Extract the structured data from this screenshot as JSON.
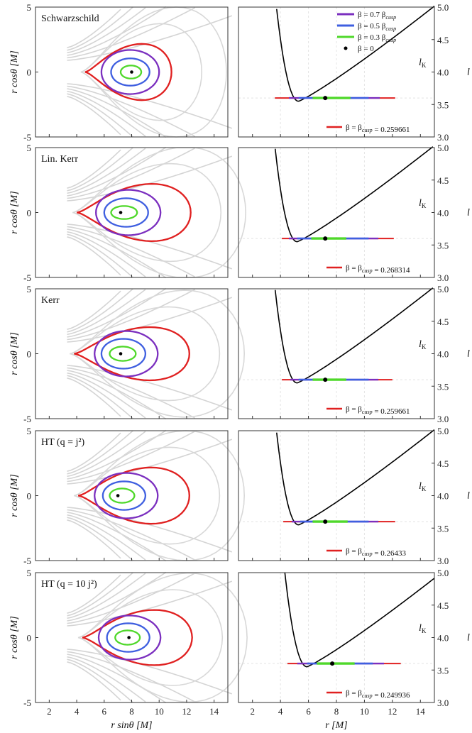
{
  "chart_data": [
    {
      "type": "contour",
      "panel": "left",
      "model_label": "Schwarzschild",
      "xlim": [
        1,
        15
      ],
      "ylim": [
        -5,
        5
      ],
      "xticks": [
        "2",
        "4",
        "6",
        "8",
        "10",
        "12",
        "14"
      ],
      "yticks": [
        "5",
        "0",
        "-5"
      ],
      "ylabel": "r cosθ [M]",
      "center": 8.0,
      "cusp_x": 4.6,
      "beta0": "β = 0",
      "contours": [
        {
          "name": "β = β_cusp",
          "color": "#e02020",
          "x_in": 4.6,
          "x_out": 10.9,
          "y_max": 2.75
        },
        {
          "name": "β = 0.7 β_cusp",
          "color": "#7b2fbf",
          "x_in": 5.8,
          "x_out": 10.0,
          "y_max": 1.7
        },
        {
          "name": "β = 0.5 β_cusp",
          "color": "#3f5fe0",
          "x_in": 6.5,
          "x_out": 9.3,
          "y_max": 1.05
        },
        {
          "name": "β = 0.3 β_cusp",
          "color": "#4fd82a",
          "x_in": 7.2,
          "x_out": 8.7,
          "y_max": 0.5
        }
      ]
    },
    {
      "type": "line",
      "panel": "right",
      "xlim": [
        1,
        15
      ],
      "ylim": [
        3.0,
        5.0
      ],
      "xticks": [
        "2",
        "4",
        "6",
        "8",
        "10",
        "12",
        "14"
      ],
      "yticks": [
        "5.0",
        "4.5",
        "4.0",
        "3.5",
        "3.0"
      ],
      "ylabel": "l",
      "curve_label": "lK",
      "curve_min": {
        "r": 5.3,
        "l": 3.55
      },
      "l_level": 3.6,
      "r_center": 7.2,
      "bands": {
        "cusp": [
          3.6,
          12.2
        ],
        "b07": [
          4.6,
          11.1
        ],
        "b05": [
          5.3,
          10.3
        ],
        "b03": [
          6.3,
          9.0
        ]
      },
      "legend": [
        {
          "label": "β = 0.7 βcusp",
          "color": "#7b2fbf"
        },
        {
          "label": "β = 0.5 βcusp",
          "color": "#3f5fe0"
        },
        {
          "label": "β = 0.3 βcusp",
          "color": "#4fd82a"
        },
        {
          "label": "β = 0",
          "color": "#000000"
        }
      ],
      "cusp_label": "β = βcusp = 0.259661"
    },
    {
      "type": "contour",
      "panel": "left",
      "model_label": "Lin. Kerr",
      "xlim": [
        1,
        15
      ],
      "ylim": [
        -5,
        5
      ],
      "xticks": [
        "2",
        "4",
        "6",
        "8",
        "10",
        "12",
        "14"
      ],
      "yticks": [
        "5",
        "0",
        "-5"
      ],
      "ylabel": "r cosθ [M]",
      "center": 7.2,
      "cusp_x": 4.0,
      "beta0": "β = 0",
      "contours": [
        {
          "name": "β = β_cusp",
          "color": "#e02020",
          "x_in": 4.0,
          "x_out": 12.3,
          "y_max": 2.8
        },
        {
          "name": "β = 0.7 β_cusp",
          "color": "#7b2fbf",
          "x_in": 5.4,
          "x_out": 10.1,
          "y_max": 1.75
        },
        {
          "name": "β = 0.5 β_cusp",
          "color": "#3f5fe0",
          "x_in": 6.0,
          "x_out": 9.2,
          "y_max": 1.1
        },
        {
          "name": "β = 0.3 β_cusp",
          "color": "#4fd82a",
          "x_in": 6.5,
          "x_out": 8.4,
          "y_max": 0.5
        }
      ]
    },
    {
      "type": "line",
      "panel": "right",
      "xlim": [
        1,
        15
      ],
      "ylim": [
        3.0,
        5.0
      ],
      "xticks": [
        "2",
        "4",
        "6",
        "8",
        "10",
        "12",
        "14"
      ],
      "yticks": [
        "5.0",
        "4.5",
        "4.0",
        "3.5",
        "3.0"
      ],
      "ylabel": "l",
      "curve_label": "lK",
      "curve_min": {
        "r": 5.2,
        "l": 3.55
      },
      "l_level": 3.6,
      "r_center": 7.2,
      "bands": {
        "cusp": [
          4.1,
          12.1
        ],
        "b07": [
          4.6,
          11.0
        ],
        "b05": [
          5.2,
          10.3
        ],
        "b03": [
          6.2,
          8.7
        ]
      },
      "cusp_label": "β = βcusp = 0.268314"
    },
    {
      "type": "contour",
      "panel": "left",
      "model_label": "Kerr",
      "xlim": [
        1,
        15
      ],
      "ylim": [
        -5,
        5
      ],
      "xticks": [
        "2",
        "4",
        "6",
        "8",
        "10",
        "12",
        "14"
      ],
      "yticks": [
        "5",
        "0",
        "-5"
      ],
      "ylabel": "r cosθ [M]",
      "center": 7.2,
      "cusp_x": 3.8,
      "beta0": "β = 0",
      "contours": [
        {
          "name": "β = β_cusp",
          "color": "#e02020",
          "x_in": 3.8,
          "x_out": 12.2,
          "y_max": 2.6
        },
        {
          "name": "β = 0.7 β_cusp",
          "color": "#7b2fbf",
          "x_in": 5.3,
          "x_out": 9.9,
          "y_max": 1.75
        },
        {
          "name": "β = 0.5 β_cusp",
          "color": "#3f5fe0",
          "x_in": 5.8,
          "x_out": 9.0,
          "y_max": 1.15
        },
        {
          "name": "β = 0.3 β_cusp",
          "color": "#4fd82a",
          "x_in": 6.4,
          "x_out": 8.3,
          "y_max": 0.55
        }
      ]
    },
    {
      "type": "line",
      "panel": "right",
      "xlim": [
        1,
        15
      ],
      "ylim": [
        3.0,
        5.0
      ],
      "xticks": [
        "2",
        "4",
        "6",
        "8",
        "10",
        "12",
        "14"
      ],
      "yticks": [
        "5.0",
        "4.5",
        "4.0",
        "3.5",
        "3.0"
      ],
      "ylabel": "l",
      "curve_label": "lK",
      "curve_min": {
        "r": 5.2,
        "l": 3.55
      },
      "l_level": 3.6,
      "r_center": 7.2,
      "bands": {
        "cusp": [
          4.1,
          12.0
        ],
        "b07": [
          4.7,
          11.0
        ],
        "b05": [
          5.3,
          10.3
        ],
        "b03": [
          6.3,
          8.7
        ]
      },
      "cusp_label": "β = βcusp = 0.259661"
    },
    {
      "type": "contour",
      "panel": "left",
      "model_label": "HT (q = j²)",
      "xlim": [
        1,
        15
      ],
      "ylim": [
        -5,
        5
      ],
      "xticks": [
        "2",
        "4",
        "6",
        "8",
        "10",
        "12",
        "14"
      ],
      "yticks": [
        "5",
        "0",
        "-5"
      ],
      "ylabel": "r cosθ [M]",
      "center": 7.0,
      "cusp_x": 4.1,
      "beta0": "β = 0",
      "contours": [
        {
          "name": "β = β_cusp",
          "color": "#e02020",
          "x_in": 4.1,
          "x_out": 12.2,
          "y_max": 2.75
        },
        {
          "name": "β = 0.7 β_cusp",
          "color": "#7b2fbf",
          "x_in": 5.3,
          "x_out": 9.9,
          "y_max": 1.75
        },
        {
          "name": "β = 0.5 β_cusp",
          "color": "#3f5fe0",
          "x_in": 5.9,
          "x_out": 9.0,
          "y_max": 1.1
        },
        {
          "name": "β = 0.3 β_cusp",
          "color": "#4fd82a",
          "x_in": 6.4,
          "x_out": 8.2,
          "y_max": 0.55
        }
      ]
    },
    {
      "type": "line",
      "panel": "right",
      "xlim": [
        1,
        15
      ],
      "ylim": [
        3.0,
        5.0
      ],
      "xticks": [
        "2",
        "4",
        "6",
        "8",
        "10",
        "12",
        "14"
      ],
      "yticks": [
        "5.0",
        "4.5",
        "4.0",
        "3.5",
        "3.0"
      ],
      "ylabel": "l",
      "curve_label": "lK",
      "curve_min": {
        "r": 5.3,
        "l": 3.55
      },
      "l_level": 3.6,
      "r_center": 7.2,
      "bands": {
        "cusp": [
          4.2,
          12.2
        ],
        "b07": [
          4.8,
          11.0
        ],
        "b05": [
          5.4,
          10.3
        ],
        "b03": [
          6.3,
          8.8
        ]
      },
      "cusp_label": "β = βcusp = 0.26433"
    },
    {
      "type": "contour",
      "panel": "left",
      "model_label": "HT (q = 10 j²)",
      "xlim": [
        1,
        15
      ],
      "ylim": [
        -5,
        5
      ],
      "xticks": [
        "2",
        "4",
        "6",
        "8",
        "10",
        "12",
        "14"
      ],
      "yticks": [
        "5",
        "0",
        "-5"
      ],
      "ylabel": "r cosθ [M]",
      "xlabel": "r sinθ [M]",
      "center": 7.8,
      "cusp_x": 4.4,
      "beta0": "β = 0",
      "contours": [
        {
          "name": "β = β_cusp",
          "color": "#e02020",
          "x_in": 4.4,
          "x_out": 12.4,
          "y_max": 2.7
        },
        {
          "name": "β = 0.7 β_cusp",
          "color": "#7b2fbf",
          "x_in": 5.6,
          "x_out": 10.1,
          "y_max": 1.7
        },
        {
          "name": "β = 0.5 β_cusp",
          "color": "#3f5fe0",
          "x_in": 6.2,
          "x_out": 9.3,
          "y_max": 1.1
        },
        {
          "name": "β = 0.3 β_cusp",
          "color": "#4fd82a",
          "x_in": 6.8,
          "x_out": 8.6,
          "y_max": 0.55
        }
      ]
    },
    {
      "type": "line",
      "panel": "right",
      "xlim": [
        1,
        15
      ],
      "ylim": [
        3.0,
        5.0
      ],
      "xticks": [
        "2",
        "4",
        "6",
        "8",
        "10",
        "12",
        "14"
      ],
      "yticks": [
        "5.0",
        "4.5",
        "4.0",
        "3.5",
        "3.0"
      ],
      "ylabel": "l",
      "curve_label": "lK",
      "xlabel": "r  [M]",
      "curve_min": {
        "r": 5.9,
        "l": 3.55
      },
      "l_level": 3.6,
      "r_center": 7.7,
      "bands": {
        "cusp": [
          4.5,
          12.6
        ],
        "b07": [
          5.2,
          11.4
        ],
        "b05": [
          5.9,
          10.6
        ],
        "b03": [
          6.6,
          9.3
        ]
      },
      "cusp_label": "β = βcusp = 0.249936"
    }
  ]
}
